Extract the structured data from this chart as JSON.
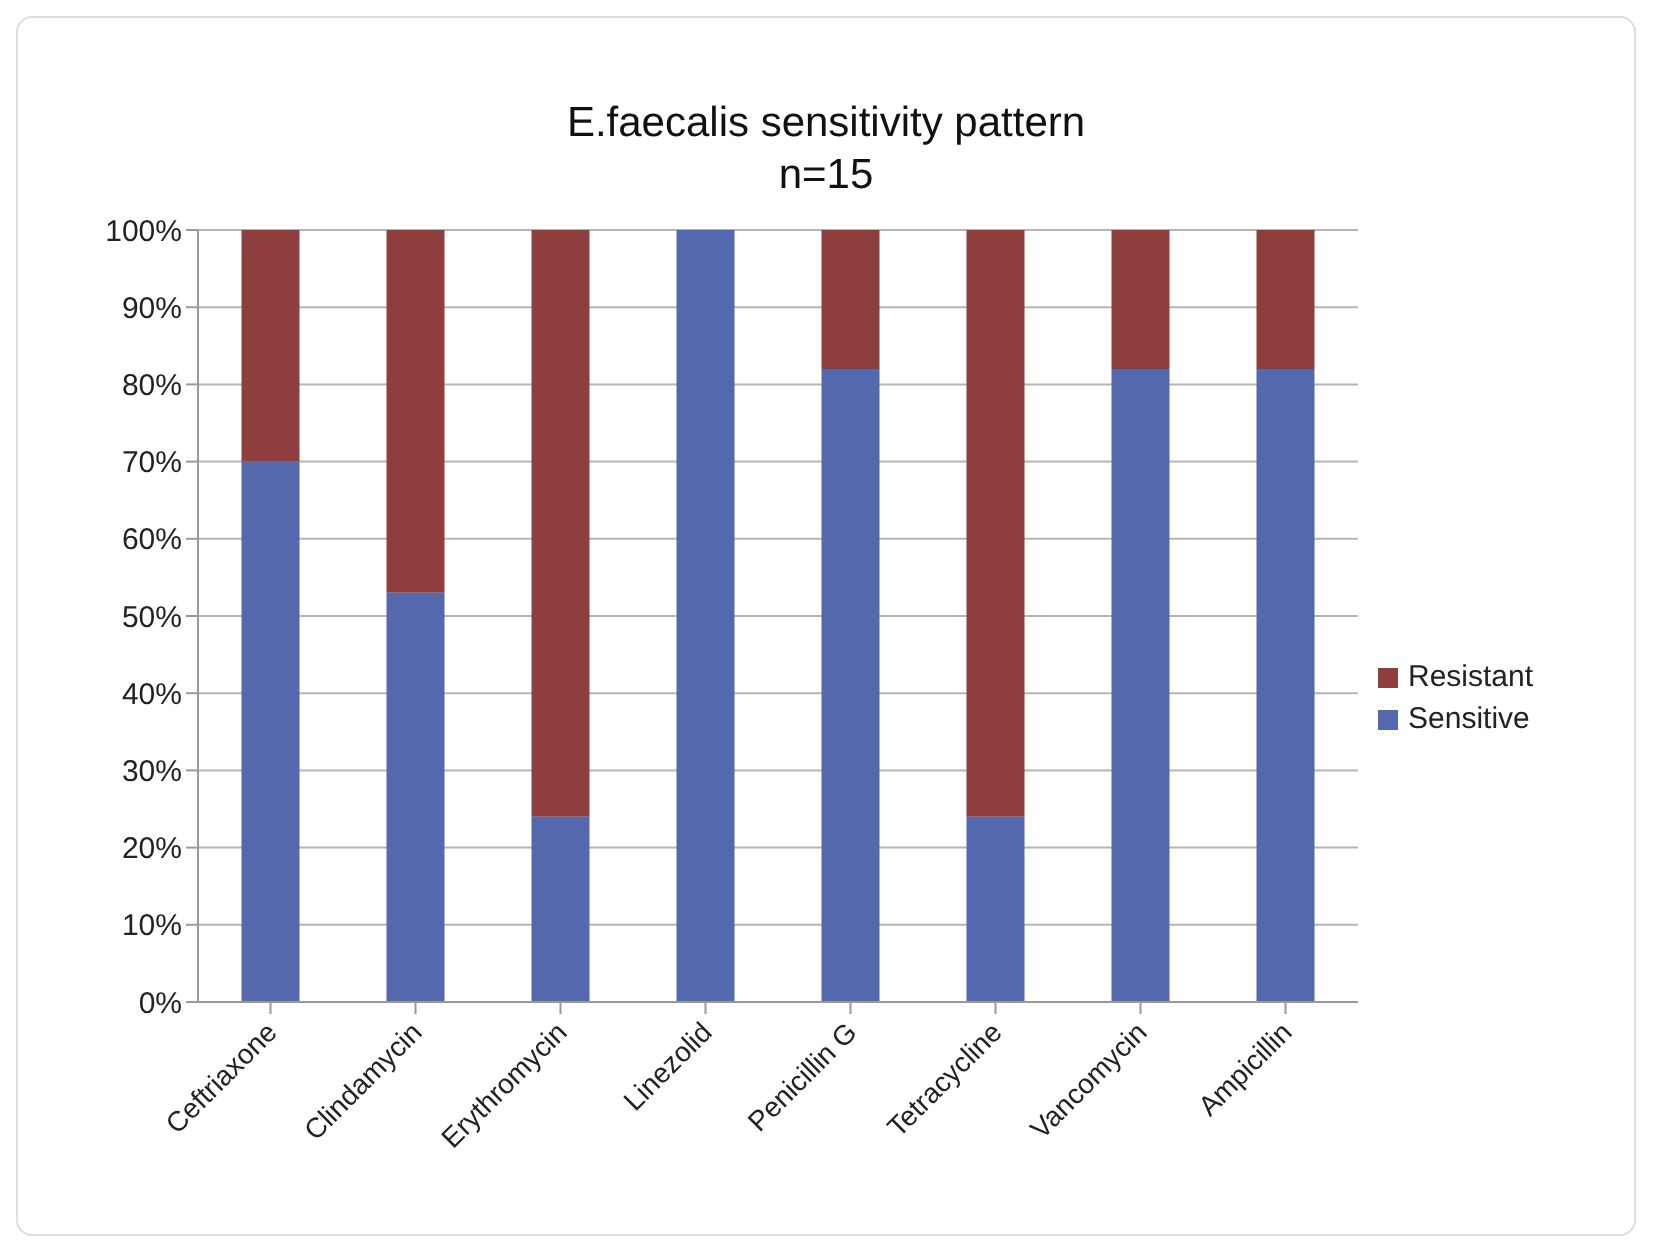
{
  "chart_data": {
    "type": "bar",
    "title": "E.faecalis sensitivity pattern",
    "subtitle": "n=15",
    "categories": [
      "Ceftriaxone",
      "Clindamycin",
      "Erythromycin",
      "Linezolid",
      "Penicillin G",
      "Tetracycline",
      "Vancomycin",
      "Ampicillin"
    ],
    "series": [
      {
        "name": "Sensitive",
        "color": "#5469ad",
        "values": [
          70,
          53,
          24,
          100,
          82,
          24,
          82,
          82
        ]
      },
      {
        "name": "Resistant",
        "color": "#8e3f3d",
        "values": [
          30,
          47,
          76,
          0,
          18,
          76,
          18,
          18
        ]
      }
    ],
    "stacked": true,
    "ylim": [
      0,
      100
    ],
    "yticks": [
      {
        "value": 0,
        "label": "0%"
      },
      {
        "value": 10,
        "label": "10%"
      },
      {
        "value": 20,
        "label": "20%"
      },
      {
        "value": 30,
        "label": "30%"
      },
      {
        "value": 40,
        "label": "40%"
      },
      {
        "value": 50,
        "label": "50%"
      },
      {
        "value": 60,
        "label": "60%"
      },
      {
        "value": 70,
        "label": "70%"
      },
      {
        "value": 80,
        "label": "80%"
      },
      {
        "value": 90,
        "label": "90%"
      },
      {
        "value": 100,
        "label": "100%"
      }
    ],
    "grid": "y",
    "legend": "right"
  }
}
